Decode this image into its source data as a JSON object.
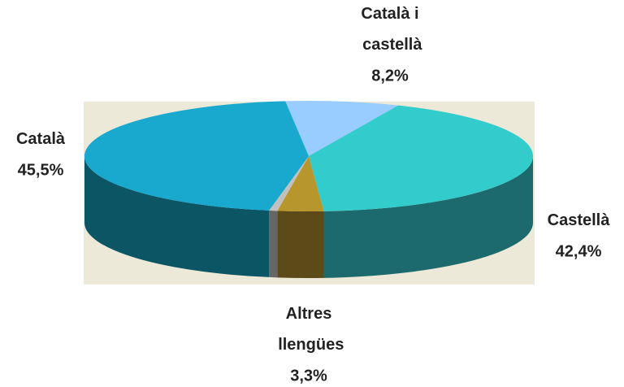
{
  "chart_data": {
    "type": "pie",
    "categories": [
      "Català i castellà",
      "Castellà",
      "Altres llengües",
      null,
      "Català"
    ],
    "values": [
      8.2,
      42.4,
      3.3,
      0.6,
      45.5
    ],
    "value_labels": [
      "8,2%",
      "42,4%",
      "3,3%",
      null,
      "45,5%"
    ],
    "colors": [
      "#99ccff",
      "#33cccc",
      "#b8962e",
      "#c0c0c0",
      "#19a9cf"
    ],
    "side_colors": [
      "#5f7f9f",
      "#1d6a6e",
      "#5c4a18",
      "#666666",
      "#0b5565"
    ]
  }
}
